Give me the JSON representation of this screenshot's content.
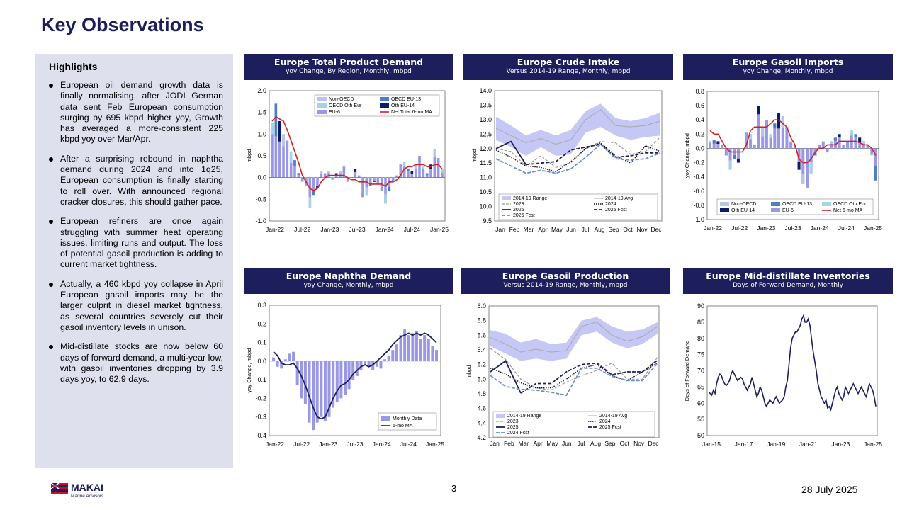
{
  "page": {
    "title": "Key Observations",
    "page_number": "3",
    "date": "28 July 2025"
  },
  "logo": {
    "name": "MAKAI",
    "subtitle": "Marine Advisors"
  },
  "highlights": {
    "title": "Highlights",
    "bullets": [
      "European oil demand growth data is finally normalising, after JODI German data sent Feb European consumption surging by 695 kbpd higher yoy, Growth has averaged a more-consistent 225 kbpd yoy over Mar/Apr.",
      "After a surprising rebound in naphtha demand during 2024 and into 1q25, European consumption is finally starting to roll over. With announced regional cracker closures, this should gather pace.",
      "European refiners are once again struggling with summer heat operating issues, limiting runs and output. The loss of potential gasoil production is adding to current market tightness.",
      "Actually, a 460 kbpd yoy collapse in April European gasoil imports may be the larger culprit in diesel market tightness, as several countries severely cut their gasoil inventory levels in unison.",
      "Mid-distillate stocks are now below 60 days of forward demand, a multi-year low, with gasoil inventories dropping by 3.9 days yoy, to 62.9 days."
    ]
  },
  "colors": {
    "navy": "#1c1f5c",
    "band": "#c5c8f4",
    "red": "#d42020",
    "bar_a": "#9a98e4",
    "bar_b": "#a7d3e6",
    "bar_c": "#4f7fc0",
    "bar_d": "#0c1a6a",
    "bar_e": "#b9c4e6",
    "grey": "#a8a8a8"
  },
  "chart_data": [
    {
      "id": "total-demand",
      "type": "bar",
      "title": "Europe Total Product Demand",
      "subtitle": "yoy Change, By Region, Monthly, mbpd",
      "ylabel": "mbpd",
      "ylim": [
        -1.0,
        2.0
      ],
      "yticks": [
        2.0,
        1.5,
        1.0,
        0.5,
        0.0,
        -0.5,
        -1.0
      ],
      "xticks": [
        "Jan-22",
        "Jul-22",
        "Jan-23",
        "Jul-23",
        "Jan-24",
        "Jul-24",
        "Jan-25"
      ],
      "legend": [
        "Non-OECD",
        "OECD EU-13",
        "OECD Oth Eur",
        "Oth EU-14",
        "EU-6",
        "Net Total 6-mo MA"
      ],
      "bars": [
        1.25,
        1.7,
        1.3,
        1.0,
        0.85,
        0.6,
        0.4,
        0.1,
        -0.1,
        -0.2,
        -0.7,
        -0.4,
        -0.25,
        0.15,
        0.1,
        0.15,
        -0.05,
        0.1,
        0.15,
        0.25,
        -0.1,
        0.0,
        0.2,
        0.05,
        -0.45,
        -0.4,
        -0.2,
        -0.1,
        -0.15,
        -0.3,
        -0.6,
        -0.3,
        -0.1,
        0.05,
        0.3,
        0.35,
        0.2,
        0.15,
        0.3,
        0.5,
        0.25,
        0.1,
        0.3,
        0.65,
        0.45,
        0.2
      ],
      "series": [
        {
          "name": "Net Total 6-mo MA",
          "values": [
            1.3,
            1.4,
            1.35,
            1.3,
            1.1,
            0.85,
            0.6,
            0.35,
            0.05,
            -0.1,
            -0.25,
            -0.3,
            -0.25,
            -0.1,
            0.0,
            0.05,
            0.05,
            0.05,
            0.05,
            0.05,
            0.0,
            -0.05,
            -0.05,
            -0.1,
            -0.1,
            -0.1,
            -0.15,
            -0.15,
            -0.15,
            -0.15,
            -0.2,
            -0.1,
            -0.1,
            -0.05,
            0.05,
            0.2,
            0.25,
            0.25,
            0.3,
            0.3,
            0.3,
            0.25,
            0.25,
            0.3,
            0.3,
            0.2
          ]
        }
      ]
    },
    {
      "id": "crude-intake",
      "type": "line",
      "title": "Europe Crude Intake",
      "subtitle": "Versus 2014-19 Range, Monthly, mbpd",
      "ylabel": "mbpd",
      "ylim": [
        9.5,
        14.0
      ],
      "yticks": [
        14.0,
        13.5,
        13.0,
        12.5,
        12.0,
        11.5,
        11.0,
        10.5,
        10.0,
        9.5
      ],
      "xticks": [
        "Jan",
        "Feb",
        "Mar",
        "Apr",
        "May",
        "Jun",
        "Jul",
        "Aug",
        "Sep",
        "Oct",
        "Nov",
        "Dec"
      ],
      "legend": [
        "2014-19 Range",
        "2014-19 Avg",
        "2023",
        "2024",
        "2025",
        "2025 Fcst",
        "2026 Fcst"
      ],
      "range_high": [
        13.1,
        12.8,
        12.45,
        12.65,
        12.45,
        12.65,
        13.3,
        13.55,
        13.05,
        12.95,
        13.05,
        13.25
      ],
      "range_low": [
        12.3,
        12.05,
        11.75,
        12.05,
        11.75,
        11.8,
        12.55,
        12.75,
        12.45,
        12.3,
        12.4,
        12.45
      ],
      "series": [
        {
          "name": "2014-19 Avg",
          "values": [
            12.7,
            12.45,
            12.2,
            12.35,
            12.15,
            12.3,
            13.0,
            13.35,
            12.8,
            12.75,
            12.8,
            12.95
          ]
        },
        {
          "name": "2023",
          "values": [
            12.0,
            11.9,
            11.4,
            11.75,
            11.35,
            11.5,
            12.0,
            12.25,
            12.2,
            11.8,
            11.9,
            12.4
          ]
        },
        {
          "name": "2024",
          "values": [
            11.95,
            11.7,
            11.4,
            11.35,
            11.2,
            11.55,
            12.0,
            12.2,
            11.75,
            11.5,
            12.1,
            11.9
          ]
        },
        {
          "name": "2025",
          "values": [
            12.0,
            12.25,
            11.45,
            null,
            null,
            null,
            null,
            null,
            null,
            null,
            null,
            null
          ]
        },
        {
          "name": "2025 Fcst",
          "values": [
            null,
            null,
            11.45,
            11.5,
            11.55,
            11.95,
            12.05,
            12.15,
            11.7,
            11.75,
            11.85,
            11.85
          ]
        },
        {
          "name": "2026 Fcst",
          "values": [
            11.65,
            11.4,
            11.15,
            11.25,
            11.15,
            11.3,
            11.7,
            12.15,
            11.65,
            11.6,
            11.65,
            11.85
          ]
        }
      ]
    },
    {
      "id": "gasoil-imports",
      "type": "bar",
      "title": "Europe Gasoil Imports",
      "subtitle": "yoy Change, Monthly, mbpd",
      "ylabel": "yoy Change, mbpd",
      "ylim": [
        -1.0,
        0.8
      ],
      "yticks": [
        0.8,
        0.6,
        0.4,
        0.2,
        0.0,
        -0.2,
        -0.4,
        -0.6,
        -0.8,
        -1.0
      ],
      "xticks": [
        "Jan-22",
        "Jul-22",
        "Jan-23",
        "Jul-23",
        "Jan-24",
        "Jul-24",
        "Jan-25"
      ],
      "legend": [
        "Non-OECD",
        "OECD EU-13",
        "OECD Oth Eur",
        "Oth EU-14",
        "EU-6",
        "Net 6-mo MA"
      ],
      "bars": [
        0.1,
        0.12,
        0.1,
        0.05,
        -0.1,
        -0.3,
        -0.15,
        -0.2,
        0.0,
        0.22,
        0.2,
        0.05,
        0.6,
        0.3,
        0.4,
        0.2,
        0.35,
        0.5,
        0.45,
        0.3,
        0.1,
        0.05,
        -0.3,
        -0.5,
        -0.55,
        -0.35,
        -0.1,
        0.05,
        0.1,
        -0.05,
        0.1,
        0.15,
        0.2,
        0.05,
        0.1,
        0.25,
        0.2,
        0.15,
        0.1,
        0.05,
        -0.1,
        -0.45
      ],
      "series": [
        {
          "name": "Net 6-mo MA",
          "values": [
            0.25,
            0.2,
            0.2,
            0.1,
            0.0,
            -0.05,
            -0.05,
            -0.05,
            -0.05,
            0.05,
            0.25,
            0.3,
            0.3,
            0.3,
            0.3,
            0.35,
            0.4,
            0.4,
            0.35,
            0.3,
            0.15,
            0.05,
            -0.15,
            -0.2,
            -0.2,
            -0.15,
            -0.05,
            0.0,
            0.0,
            0.05,
            0.05,
            0.05,
            0.1,
            0.1,
            0.1,
            0.1,
            0.1,
            0.08,
            0.05,
            0.05,
            0.0,
            -0.1
          ]
        }
      ]
    },
    {
      "id": "naphtha-demand",
      "type": "bar",
      "title": "Europe Naphtha Demand",
      "subtitle": "yoy Change, Monthly, mbpd",
      "ylabel": "yoy Change, mbpd",
      "ylim": [
        -0.4,
        0.3
      ],
      "yticks": [
        0.3,
        0.2,
        0.1,
        0.0,
        -0.1,
        -0.2,
        -0.3,
        -0.4
      ],
      "xticks": [
        "Jan-22",
        "Jul-22",
        "Jan-23",
        "Jul-23",
        "Jan-24",
        "Jul-24",
        "Jan-25"
      ],
      "legend": [
        "Monthly Data",
        "6-mo MA"
      ],
      "bars": [
        0.02,
        -0.03,
        -0.04,
        0.01,
        0.04,
        0.05,
        -0.13,
        -0.2,
        -0.23,
        -0.33,
        -0.37,
        -0.33,
        -0.3,
        -0.32,
        -0.3,
        -0.25,
        -0.22,
        -0.2,
        -0.18,
        -0.15,
        -0.1,
        -0.08,
        -0.05,
        -0.02,
        -0.03,
        -0.05,
        -0.03,
        -0.04,
        0.01,
        0.03,
        0.06,
        0.09,
        0.14,
        0.17,
        0.14,
        0.15,
        0.16,
        0.12,
        0.14,
        0.12,
        0.08,
        0.06
      ],
      "series": [
        {
          "name": "6-mo MA",
          "values": [
            0.05,
            0.03,
            -0.01,
            -0.02,
            -0.02,
            -0.01,
            -0.04,
            -0.08,
            -0.13,
            -0.19,
            -0.25,
            -0.3,
            -0.31,
            -0.3,
            -0.25,
            -0.2,
            -0.16,
            -0.13,
            -0.12,
            -0.1,
            -0.07,
            -0.05,
            -0.03,
            -0.02,
            -0.03,
            -0.02,
            0.0,
            0.02,
            0.04,
            0.06,
            0.09,
            0.11,
            0.13,
            0.14,
            0.15,
            0.14,
            0.15,
            0.14,
            0.15,
            0.14,
            0.12,
            0.1
          ]
        }
      ]
    },
    {
      "id": "gasoil-production",
      "type": "line",
      "title": "Europe Gasoil Production",
      "subtitle": "Versus 2014-19 Range, Monthly, mbpd",
      "ylabel": "mbpd",
      "ylim": [
        4.2,
        6.0
      ],
      "yticks": [
        6.0,
        5.8,
        5.6,
        5.4,
        5.2,
        5.0,
        4.8,
        4.6,
        4.4,
        4.2
      ],
      "xticks": [
        "Jan",
        "Feb",
        "Mar",
        "Apr",
        "May",
        "Jun",
        "Jul",
        "Aug",
        "Sep",
        "Oct",
        "Nov",
        "Dec"
      ],
      "legend": [
        "2014-19 Range",
        "2014-19 Avg",
        "2023",
        "2024",
        "2025",
        "2025 Fcst",
        "2024 Fcst"
      ],
      "range_high": [
        5.67,
        5.62,
        5.5,
        5.55,
        5.48,
        5.5,
        5.8,
        5.85,
        5.72,
        5.65,
        5.68,
        5.78
      ],
      "range_low": [
        5.45,
        5.35,
        5.25,
        5.28,
        5.25,
        5.28,
        5.6,
        5.65,
        5.5,
        5.42,
        5.48,
        5.62
      ],
      "series": [
        {
          "name": "2014-19 Avg",
          "values": [
            5.57,
            5.48,
            5.37,
            5.41,
            5.37,
            5.39,
            5.72,
            5.78,
            5.6,
            5.52,
            5.58,
            5.72
          ]
        },
        {
          "name": "2023",
          "values": [
            5.42,
            5.27,
            5.0,
            4.88,
            4.85,
            4.96,
            5.05,
            5.12,
            5.22,
            5.0,
            5.0,
            5.3
          ]
        },
        {
          "name": "2024",
          "values": [
            5.15,
            5.07,
            4.95,
            4.88,
            4.88,
            5.0,
            5.15,
            5.2,
            5.05,
            4.98,
            5.1,
            5.22
          ]
        },
        {
          "name": "2025",
          "values": [
            5.1,
            5.25,
            4.81,
            null,
            null,
            null,
            null,
            null,
            null,
            null,
            null,
            null
          ]
        },
        {
          "name": "2025 Fcst",
          "values": [
            null,
            null,
            4.81,
            4.94,
            4.94,
            5.1,
            5.2,
            5.22,
            5.06,
            5.1,
            5.1,
            5.26
          ]
        },
        {
          "name": "2024 Fcst",
          "values": [
            5.05,
            4.9,
            4.86,
            4.85,
            4.82,
            4.78,
            5.15,
            5.15,
            5.04,
            4.98,
            4.98,
            5.22
          ]
        }
      ]
    },
    {
      "id": "middistillate-inventories",
      "type": "line",
      "title": "Europe Mid-distillate Inventories",
      "subtitle": "Days of Forward Demand, Monthly",
      "ylabel": "Days of Forward Demand",
      "ylim": [
        50,
        90
      ],
      "yticks": [
        90,
        85,
        80,
        75,
        70,
        65,
        60,
        55,
        50
      ],
      "xticks": [
        "Jan-15",
        "Jan-17",
        "Jan-19",
        "Jan-21",
        "Jan-23",
        "Jan-25"
      ],
      "series": [
        {
          "name": "Days of Forward Demand",
          "values": [
            63.5,
            63,
            62.5,
            64,
            63,
            66,
            68,
            69,
            68.5,
            67,
            66,
            65.5,
            66,
            67,
            69,
            70,
            69,
            68,
            67,
            67.5,
            68,
            67.5,
            66,
            65,
            64,
            65,
            66,
            68,
            66,
            64,
            62,
            63,
            65,
            64,
            62,
            60,
            59,
            60,
            61,
            60.5,
            60,
            61,
            62,
            61,
            60,
            60.5,
            61,
            62,
            65,
            67,
            72,
            77,
            80,
            81,
            82,
            82,
            83,
            84,
            86,
            87,
            85,
            85,
            86,
            84,
            80,
            76,
            73,
            70,
            66,
            64,
            62,
            61,
            60,
            61,
            58.5,
            59,
            58,
            60,
            62,
            64,
            65,
            63,
            62,
            61,
            62,
            65,
            64,
            63,
            64,
            65,
            66,
            65,
            64,
            63,
            64,
            65,
            64,
            63,
            62,
            64,
            66,
            65,
            64,
            62,
            59
          ]
        }
      ]
    }
  ]
}
